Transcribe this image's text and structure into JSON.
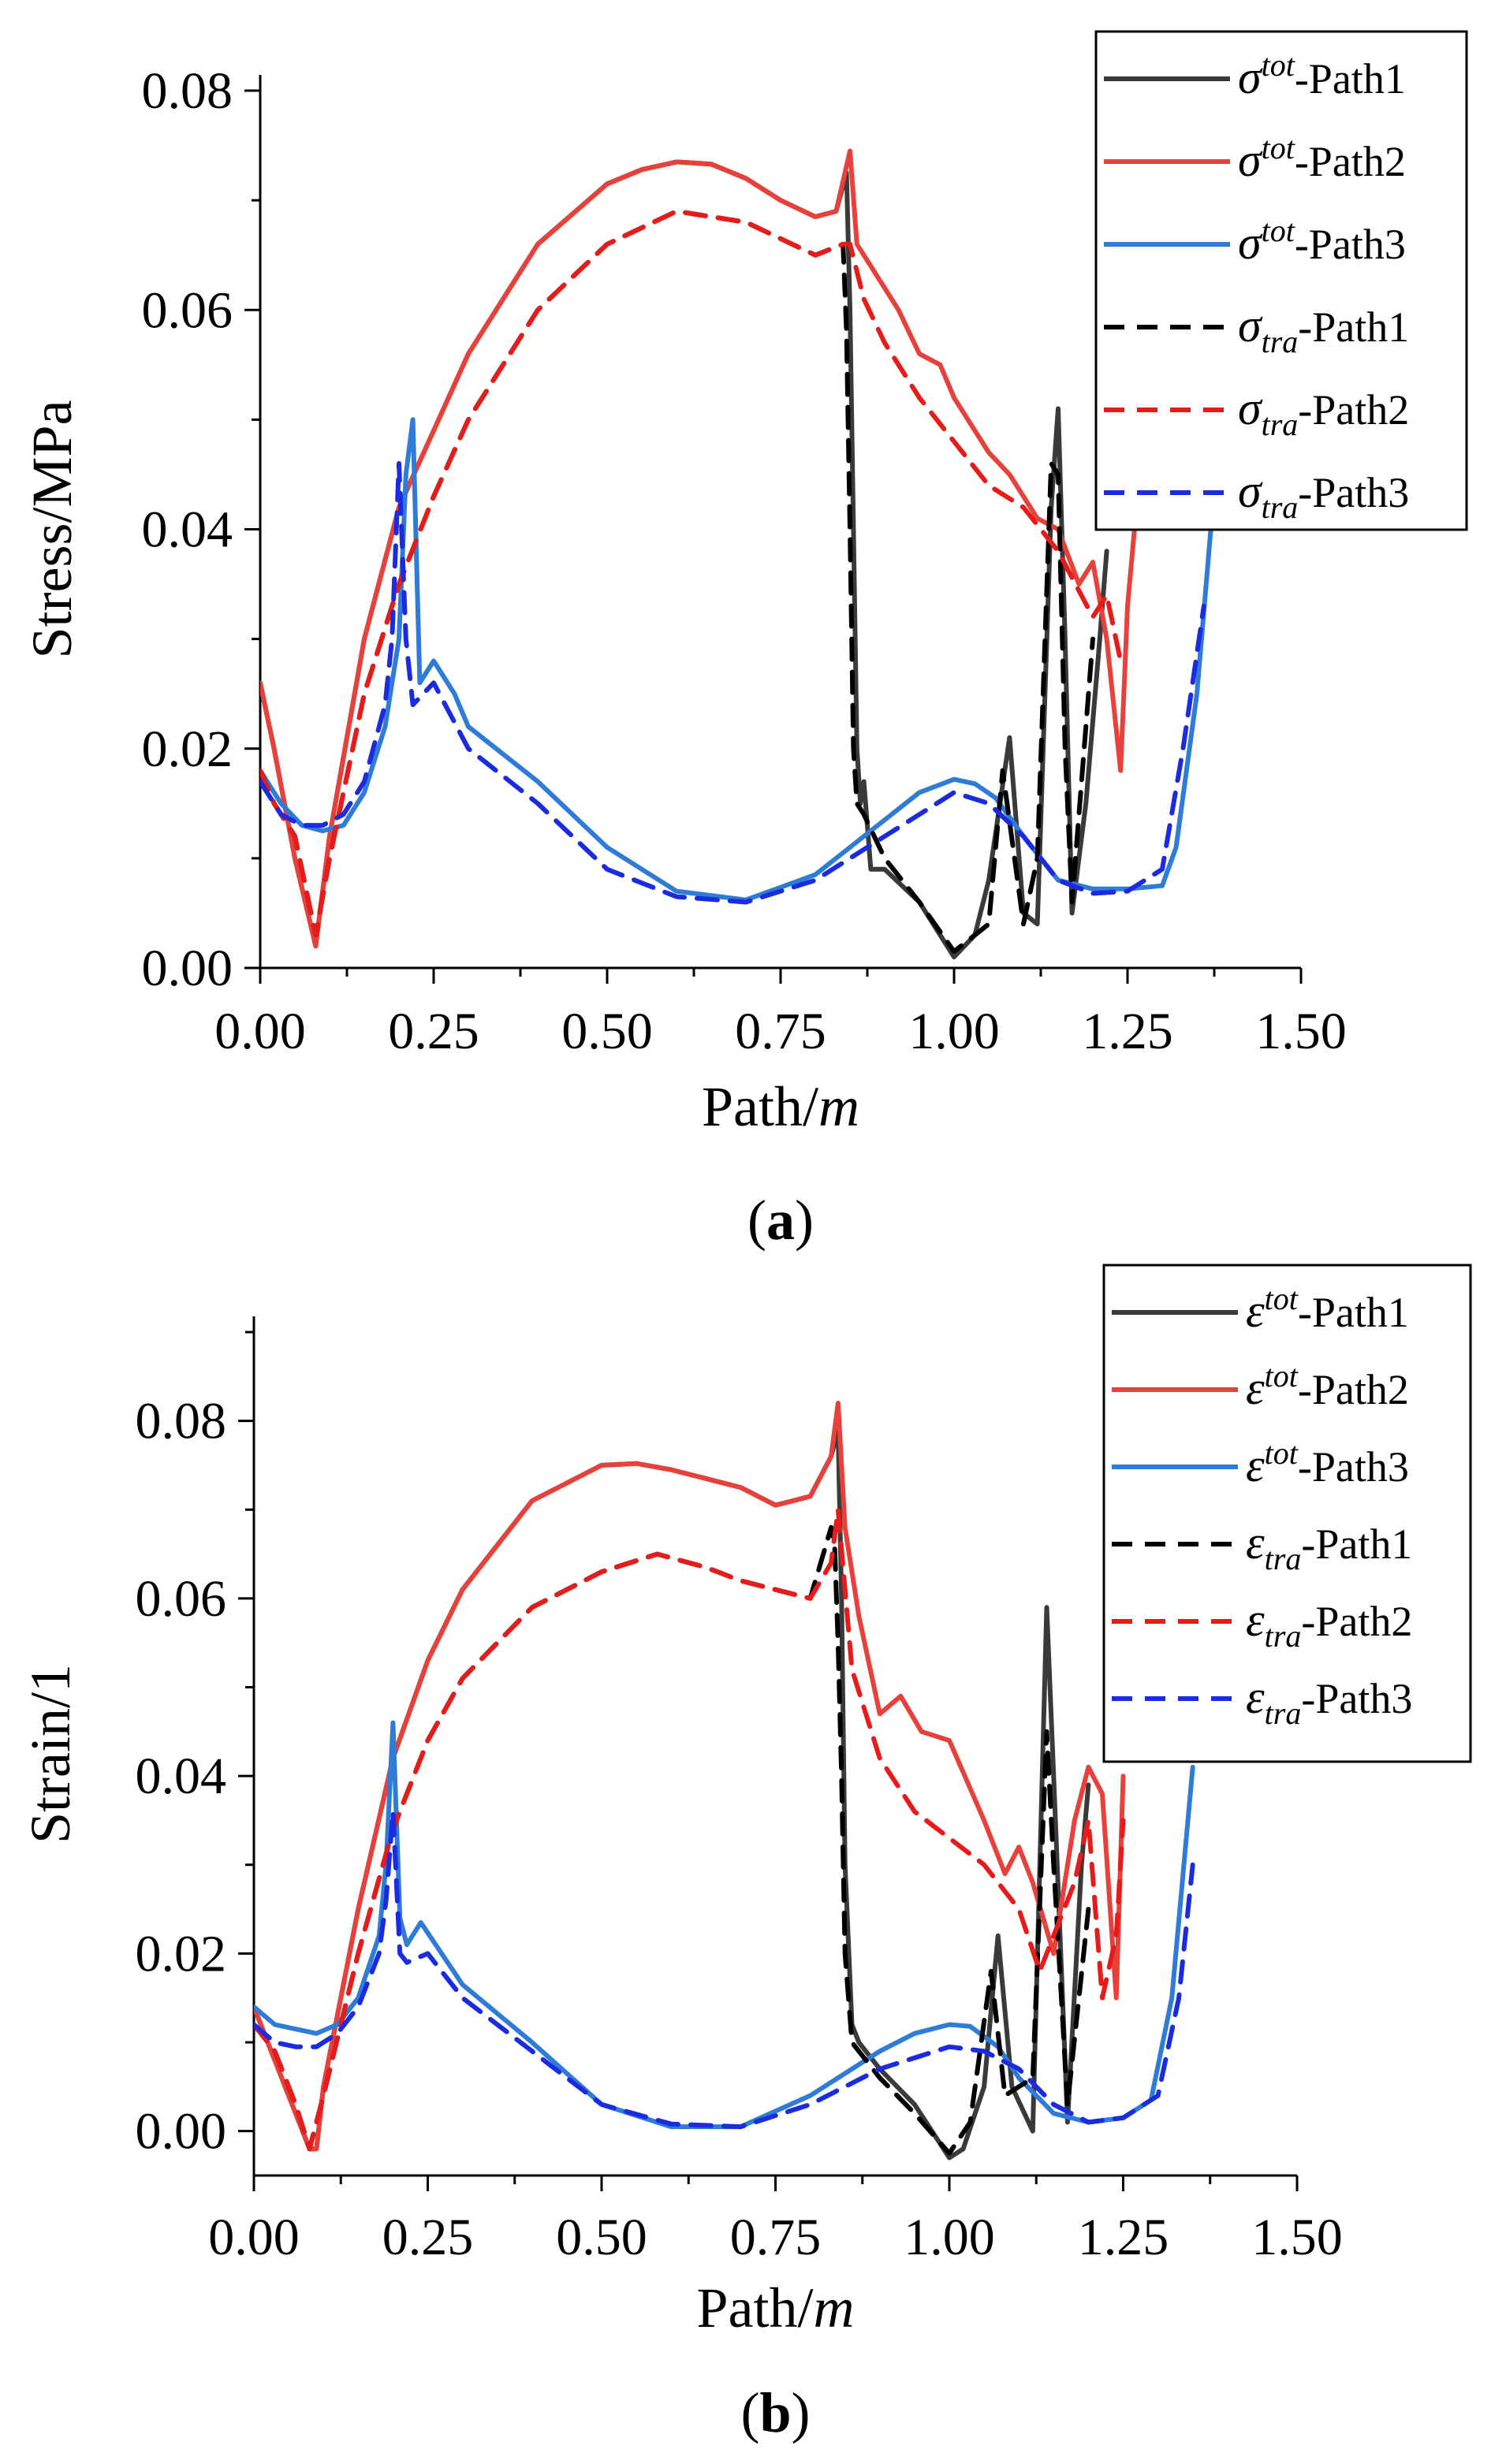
{
  "figure": {
    "panels": [
      "a",
      "b"
    ]
  },
  "chart_data": [
    {
      "type": "line",
      "panel_label": "a",
      "caption": {
        "open": "(",
        "label": "a",
        "close": ")"
      },
      "xlabel": {
        "text": "Path/",
        "unit": "m"
      },
      "ylabel": "Stress/MPa",
      "xlim": [
        0,
        1.5
      ],
      "ylim": [
        0,
        0.08
      ],
      "x_ticks": [
        0.0,
        0.25,
        0.5,
        0.75,
        1.0,
        1.25,
        1.5
      ],
      "x_tick_labels": [
        "0.00",
        "0.25",
        "0.50",
        "0.75",
        "1.00",
        "1.25",
        "1.50"
      ],
      "y_ticks": [
        0.0,
        0.02,
        0.04,
        0.06,
        0.08
      ],
      "y_tick_labels": [
        "0.00",
        "0.02",
        "0.04",
        "0.06",
        "0.08"
      ],
      "legend_position": "top-right",
      "series": [
        {
          "name": "σtot-Path1",
          "symbol": "σ",
          "sup": "tot",
          "sub": "",
          "suffix": "-Path1",
          "color": "#3a3a3a",
          "style": "solid",
          "x": [
            0.0,
            0.02,
            0.05,
            0.08,
            0.1,
            0.15,
            0.2,
            0.25,
            0.3,
            0.4,
            0.5,
            0.55,
            0.6,
            0.65,
            0.7,
            0.75,
            0.8,
            0.83,
            0.845,
            0.85,
            0.855,
            0.86,
            0.865,
            0.87,
            0.88,
            0.9,
            0.95,
            1.0,
            1.03,
            1.05,
            1.08,
            1.1,
            1.12,
            1.14,
            1.15,
            1.16,
            1.17,
            1.19,
            1.21,
            1.22
          ],
          "y": [
            0.026,
            0.02,
            0.01,
            0.002,
            0.012,
            0.03,
            0.042,
            0.049,
            0.056,
            0.066,
            0.0715,
            0.0728,
            0.0735,
            0.0733,
            0.072,
            0.07,
            0.0685,
            0.069,
            0.0725,
            0.06,
            0.04,
            0.02,
            0.015,
            0.017,
            0.009,
            0.009,
            0.006,
            0.001,
            0.003,
            0.008,
            0.021,
            0.005,
            0.004,
            0.042,
            0.051,
            0.03,
            0.005,
            0.015,
            0.03,
            0.038
          ]
        },
        {
          "name": "σtot-Path2",
          "symbol": "σ",
          "sup": "tot",
          "sub": "",
          "suffix": "-Path2",
          "color": "#e8403a",
          "style": "solid",
          "x": [
            0.0,
            0.02,
            0.05,
            0.08,
            0.1,
            0.15,
            0.2,
            0.25,
            0.3,
            0.4,
            0.5,
            0.55,
            0.6,
            0.65,
            0.7,
            0.75,
            0.8,
            0.83,
            0.85,
            0.86,
            0.88,
            0.92,
            0.95,
            0.98,
            1.0,
            1.02,
            1.05,
            1.08,
            1.12,
            1.15,
            1.18,
            1.2,
            1.22,
            1.24,
            1.25,
            1.26
          ],
          "y": [
            0.026,
            0.02,
            0.01,
            0.002,
            0.012,
            0.03,
            0.042,
            0.049,
            0.056,
            0.066,
            0.0715,
            0.0728,
            0.0735,
            0.0733,
            0.072,
            0.07,
            0.0685,
            0.069,
            0.0745,
            0.066,
            0.064,
            0.06,
            0.056,
            0.055,
            0.052,
            0.05,
            0.047,
            0.045,
            0.041,
            0.04,
            0.035,
            0.037,
            0.03,
            0.018,
            0.033,
            0.04
          ]
        },
        {
          "name": "σtot-Path3",
          "symbol": "σ",
          "sup": "tot",
          "sub": "",
          "suffix": "-Path3",
          "color": "#2f7bd8",
          "style": "solid",
          "x": [
            0.0,
            0.03,
            0.06,
            0.09,
            0.12,
            0.15,
            0.18,
            0.2,
            0.21,
            0.22,
            0.23,
            0.25,
            0.28,
            0.3,
            0.4,
            0.5,
            0.6,
            0.7,
            0.8,
            0.9,
            0.95,
            1.0,
            1.03,
            1.06,
            1.1,
            1.15,
            1.2,
            1.25,
            1.3,
            1.32,
            1.35,
            1.37
          ],
          "y": [
            0.018,
            0.015,
            0.013,
            0.0125,
            0.013,
            0.016,
            0.022,
            0.03,
            0.045,
            0.05,
            0.026,
            0.028,
            0.025,
            0.022,
            0.017,
            0.011,
            0.007,
            0.0062,
            0.0085,
            0.0135,
            0.016,
            0.0172,
            0.0168,
            0.0155,
            0.012,
            0.008,
            0.0072,
            0.0072,
            0.0075,
            0.011,
            0.025,
            0.04
          ]
        },
        {
          "name": "σtra-Path1",
          "symbol": "σ",
          "sup": "",
          "sub": "tra",
          "suffix": "-Path1",
          "color": "#000000",
          "style": "dashed",
          "x": [
            0.0,
            0.02,
            0.05,
            0.08,
            0.1,
            0.15,
            0.2,
            0.25,
            0.3,
            0.4,
            0.5,
            0.6,
            0.7,
            0.8,
            0.84,
            0.845,
            0.85,
            0.855,
            0.86,
            0.87,
            0.9,
            0.95,
            1.0,
            1.05,
            1.07,
            1.1,
            1.12,
            1.14,
            1.15,
            1.16,
            1.17,
            1.2
          ],
          "y": [
            0.018,
            0.015,
            0.012,
            0.003,
            0.01,
            0.025,
            0.035,
            0.043,
            0.05,
            0.06,
            0.066,
            0.069,
            0.068,
            0.065,
            0.066,
            0.058,
            0.04,
            0.02,
            0.015,
            0.014,
            0.01,
            0.006,
            0.0015,
            0.004,
            0.018,
            0.004,
            0.01,
            0.046,
            0.045,
            0.02,
            0.006,
            0.03
          ]
        },
        {
          "name": "σtra-Path2",
          "symbol": "σ",
          "sup": "",
          "sub": "tra",
          "suffix": "-Path2",
          "color": "#e81b1b",
          "style": "dashed",
          "x": [
            0.0,
            0.02,
            0.05,
            0.08,
            0.1,
            0.15,
            0.2,
            0.25,
            0.3,
            0.4,
            0.5,
            0.6,
            0.7,
            0.8,
            0.84,
            0.85,
            0.87,
            0.9,
            0.95,
            1.0,
            1.05,
            1.1,
            1.15,
            1.2,
            1.22,
            1.24
          ],
          "y": [
            0.018,
            0.015,
            0.012,
            0.003,
            0.01,
            0.025,
            0.035,
            0.043,
            0.05,
            0.06,
            0.066,
            0.069,
            0.068,
            0.065,
            0.066,
            0.066,
            0.061,
            0.057,
            0.052,
            0.048,
            0.044,
            0.042,
            0.038,
            0.032,
            0.034,
            0.028
          ]
        },
        {
          "name": "σtra-Path3",
          "symbol": "σ",
          "sup": "",
          "sub": "tra",
          "suffix": "-Path3",
          "color": "#1b2be0",
          "style": "dashed",
          "x": [
            0.0,
            0.03,
            0.06,
            0.09,
            0.12,
            0.15,
            0.18,
            0.19,
            0.2,
            0.21,
            0.22,
            0.25,
            0.3,
            0.4,
            0.5,
            0.6,
            0.7,
            0.8,
            0.9,
            1.0,
            1.05,
            1.1,
            1.15,
            1.2,
            1.25,
            1.3,
            1.33,
            1.36
          ],
          "y": [
            0.017,
            0.014,
            0.013,
            0.013,
            0.014,
            0.017,
            0.024,
            0.03,
            0.046,
            0.03,
            0.024,
            0.026,
            0.02,
            0.015,
            0.009,
            0.0065,
            0.006,
            0.008,
            0.012,
            0.016,
            0.015,
            0.012,
            0.008,
            0.0068,
            0.007,
            0.009,
            0.02,
            0.033
          ]
        }
      ]
    },
    {
      "type": "line",
      "panel_label": "b",
      "caption": {
        "open": "(",
        "label": "b",
        "close": ")"
      },
      "xlabel": {
        "text": "Path/",
        "unit": "m"
      },
      "ylabel": "Strain/1",
      "xlim": [
        0,
        1.5
      ],
      "ylim": [
        -0.005,
        0.09
      ],
      "x_ticks": [
        0.0,
        0.25,
        0.5,
        0.75,
        1.0,
        1.25,
        1.5
      ],
      "x_tick_labels": [
        "0.00",
        "0.25",
        "0.50",
        "0.75",
        "1.00",
        "1.25",
        "1.50"
      ],
      "y_ticks": [
        0.0,
        0.02,
        0.04,
        0.06,
        0.08
      ],
      "y_tick_labels": [
        "0.00",
        "0.02",
        "0.04",
        "0.06",
        "0.08"
      ],
      "legend_position": "top-right",
      "series": [
        {
          "name": "εtot-Path1",
          "symbol": "ε",
          "sup": "tot",
          "sub": "",
          "suffix": "-Path1",
          "color": "#3a3a3a",
          "style": "solid",
          "x": [
            0.0,
            0.02,
            0.05,
            0.08,
            0.09,
            0.1,
            0.15,
            0.2,
            0.25,
            0.3,
            0.4,
            0.5,
            0.55,
            0.6,
            0.65,
            0.7,
            0.75,
            0.8,
            0.83,
            0.84,
            0.845,
            0.85,
            0.86,
            0.87,
            0.9,
            0.95,
            1.0,
            1.02,
            1.05,
            1.07,
            1.09,
            1.12,
            1.14,
            1.15,
            1.17,
            1.19,
            1.2
          ],
          "y": [
            0.014,
            0.01,
            0.004,
            -0.002,
            -0.002,
            0.005,
            0.025,
            0.042,
            0.053,
            0.061,
            0.071,
            0.075,
            0.0752,
            0.0745,
            0.0735,
            0.0725,
            0.0705,
            0.0715,
            0.076,
            0.079,
            0.06,
            0.03,
            0.012,
            0.01,
            0.007,
            0.003,
            -0.003,
            -0.002,
            0.005,
            0.022,
            0.005,
            0.0,
            0.059,
            0.04,
            0.001,
            0.03,
            0.039
          ]
        },
        {
          "name": "εtot-Path2",
          "symbol": "ε",
          "sup": "tot",
          "sub": "",
          "suffix": "-Path2",
          "color": "#e8403a",
          "style": "solid",
          "x": [
            0.0,
            0.02,
            0.05,
            0.08,
            0.09,
            0.1,
            0.15,
            0.2,
            0.25,
            0.3,
            0.4,
            0.5,
            0.55,
            0.6,
            0.65,
            0.7,
            0.75,
            0.8,
            0.83,
            0.84,
            0.85,
            0.87,
            0.9,
            0.93,
            0.96,
            1.0,
            1.05,
            1.08,
            1.1,
            1.12,
            1.15,
            1.18,
            1.2,
            1.22,
            1.24,
            1.25
          ],
          "y": [
            0.014,
            0.01,
            0.004,
            -0.002,
            -0.002,
            0.005,
            0.025,
            0.042,
            0.053,
            0.061,
            0.071,
            0.075,
            0.0752,
            0.0745,
            0.0735,
            0.0725,
            0.0705,
            0.0715,
            0.076,
            0.082,
            0.068,
            0.058,
            0.047,
            0.049,
            0.045,
            0.044,
            0.035,
            0.029,
            0.032,
            0.028,
            0.02,
            0.035,
            0.041,
            0.038,
            0.015,
            0.04
          ]
        },
        {
          "name": "εtot-Path3",
          "symbol": "ε",
          "sup": "tot",
          "sub": "",
          "suffix": "-Path3",
          "color": "#2f7bd8",
          "style": "solid",
          "x": [
            0.0,
            0.03,
            0.06,
            0.09,
            0.12,
            0.15,
            0.18,
            0.19,
            0.2,
            0.21,
            0.22,
            0.24,
            0.27,
            0.3,
            0.4,
            0.5,
            0.6,
            0.7,
            0.8,
            0.9,
            0.95,
            1.0,
            1.03,
            1.07,
            1.1,
            1.15,
            1.2,
            1.25,
            1.29,
            1.32,
            1.35
          ],
          "y": [
            0.014,
            0.012,
            0.0115,
            0.011,
            0.012,
            0.015,
            0.022,
            0.03,
            0.046,
            0.024,
            0.021,
            0.0235,
            0.02,
            0.0165,
            0.01,
            0.003,
            0.0005,
            0.0005,
            0.004,
            0.009,
            0.011,
            0.012,
            0.0118,
            0.0095,
            0.006,
            0.002,
            0.001,
            0.0015,
            0.0035,
            0.015,
            0.041
          ]
        },
        {
          "name": "εtra-Path1",
          "symbol": "ε",
          "sup": "",
          "sub": "tra",
          "suffix": "-Path1",
          "color": "#000000",
          "style": "dashed",
          "x": [
            0.0,
            0.03,
            0.06,
            0.08,
            0.1,
            0.15,
            0.2,
            0.25,
            0.3,
            0.4,
            0.5,
            0.58,
            0.65,
            0.7,
            0.8,
            0.83,
            0.835,
            0.84,
            0.845,
            0.85,
            0.86,
            0.9,
            0.95,
            1.0,
            1.03,
            1.06,
            1.08,
            1.12,
            1.14,
            1.15,
            1.17,
            1.2
          ],
          "y": [
            0.012,
            0.009,
            0.003,
            -0.002,
            0.004,
            0.02,
            0.034,
            0.044,
            0.051,
            0.059,
            0.063,
            0.065,
            0.0635,
            0.062,
            0.06,
            0.068,
            0.066,
            0.055,
            0.04,
            0.02,
            0.01,
            0.006,
            0.002,
            -0.0025,
            0.001,
            0.018,
            0.004,
            0.006,
            0.045,
            0.03,
            0.003,
            0.025
          ]
        },
        {
          "name": "εtra-Path2",
          "symbol": "ε",
          "sup": "",
          "sub": "tra",
          "suffix": "-Path2",
          "color": "#e81b1b",
          "style": "dashed",
          "x": [
            0.0,
            0.03,
            0.06,
            0.08,
            0.1,
            0.15,
            0.2,
            0.25,
            0.3,
            0.4,
            0.5,
            0.58,
            0.65,
            0.7,
            0.8,
            0.83,
            0.84,
            0.86,
            0.9,
            0.95,
            1.0,
            1.05,
            1.1,
            1.13,
            1.15,
            1.18,
            1.2,
            1.22,
            1.24,
            1.25
          ],
          "y": [
            0.012,
            0.009,
            0.003,
            -0.002,
            0.004,
            0.02,
            0.034,
            0.044,
            0.051,
            0.059,
            0.063,
            0.065,
            0.0635,
            0.062,
            0.06,
            0.064,
            0.07,
            0.052,
            0.042,
            0.036,
            0.033,
            0.03,
            0.025,
            0.018,
            0.022,
            0.028,
            0.035,
            0.015,
            0.022,
            0.035
          ]
        },
        {
          "name": "εtra-Path3",
          "symbol": "ε",
          "sup": "",
          "sub": "tra",
          "suffix": "-Path3",
          "color": "#1b2be0",
          "style": "dashed",
          "x": [
            0.0,
            0.03,
            0.06,
            0.09,
            0.12,
            0.15,
            0.18,
            0.19,
            0.2,
            0.21,
            0.22,
            0.25,
            0.3,
            0.4,
            0.5,
            0.6,
            0.7,
            0.8,
            0.9,
            1.0,
            1.05,
            1.1,
            1.15,
            1.2,
            1.25,
            1.3,
            1.33,
            1.35
          ],
          "y": [
            0.012,
            0.01,
            0.0095,
            0.0095,
            0.011,
            0.014,
            0.02,
            0.026,
            0.036,
            0.02,
            0.019,
            0.02,
            0.015,
            0.009,
            0.003,
            0.0008,
            0.0005,
            0.003,
            0.007,
            0.0095,
            0.009,
            0.007,
            0.003,
            0.001,
            0.0015,
            0.004,
            0.015,
            0.03
          ]
        }
      ]
    }
  ]
}
